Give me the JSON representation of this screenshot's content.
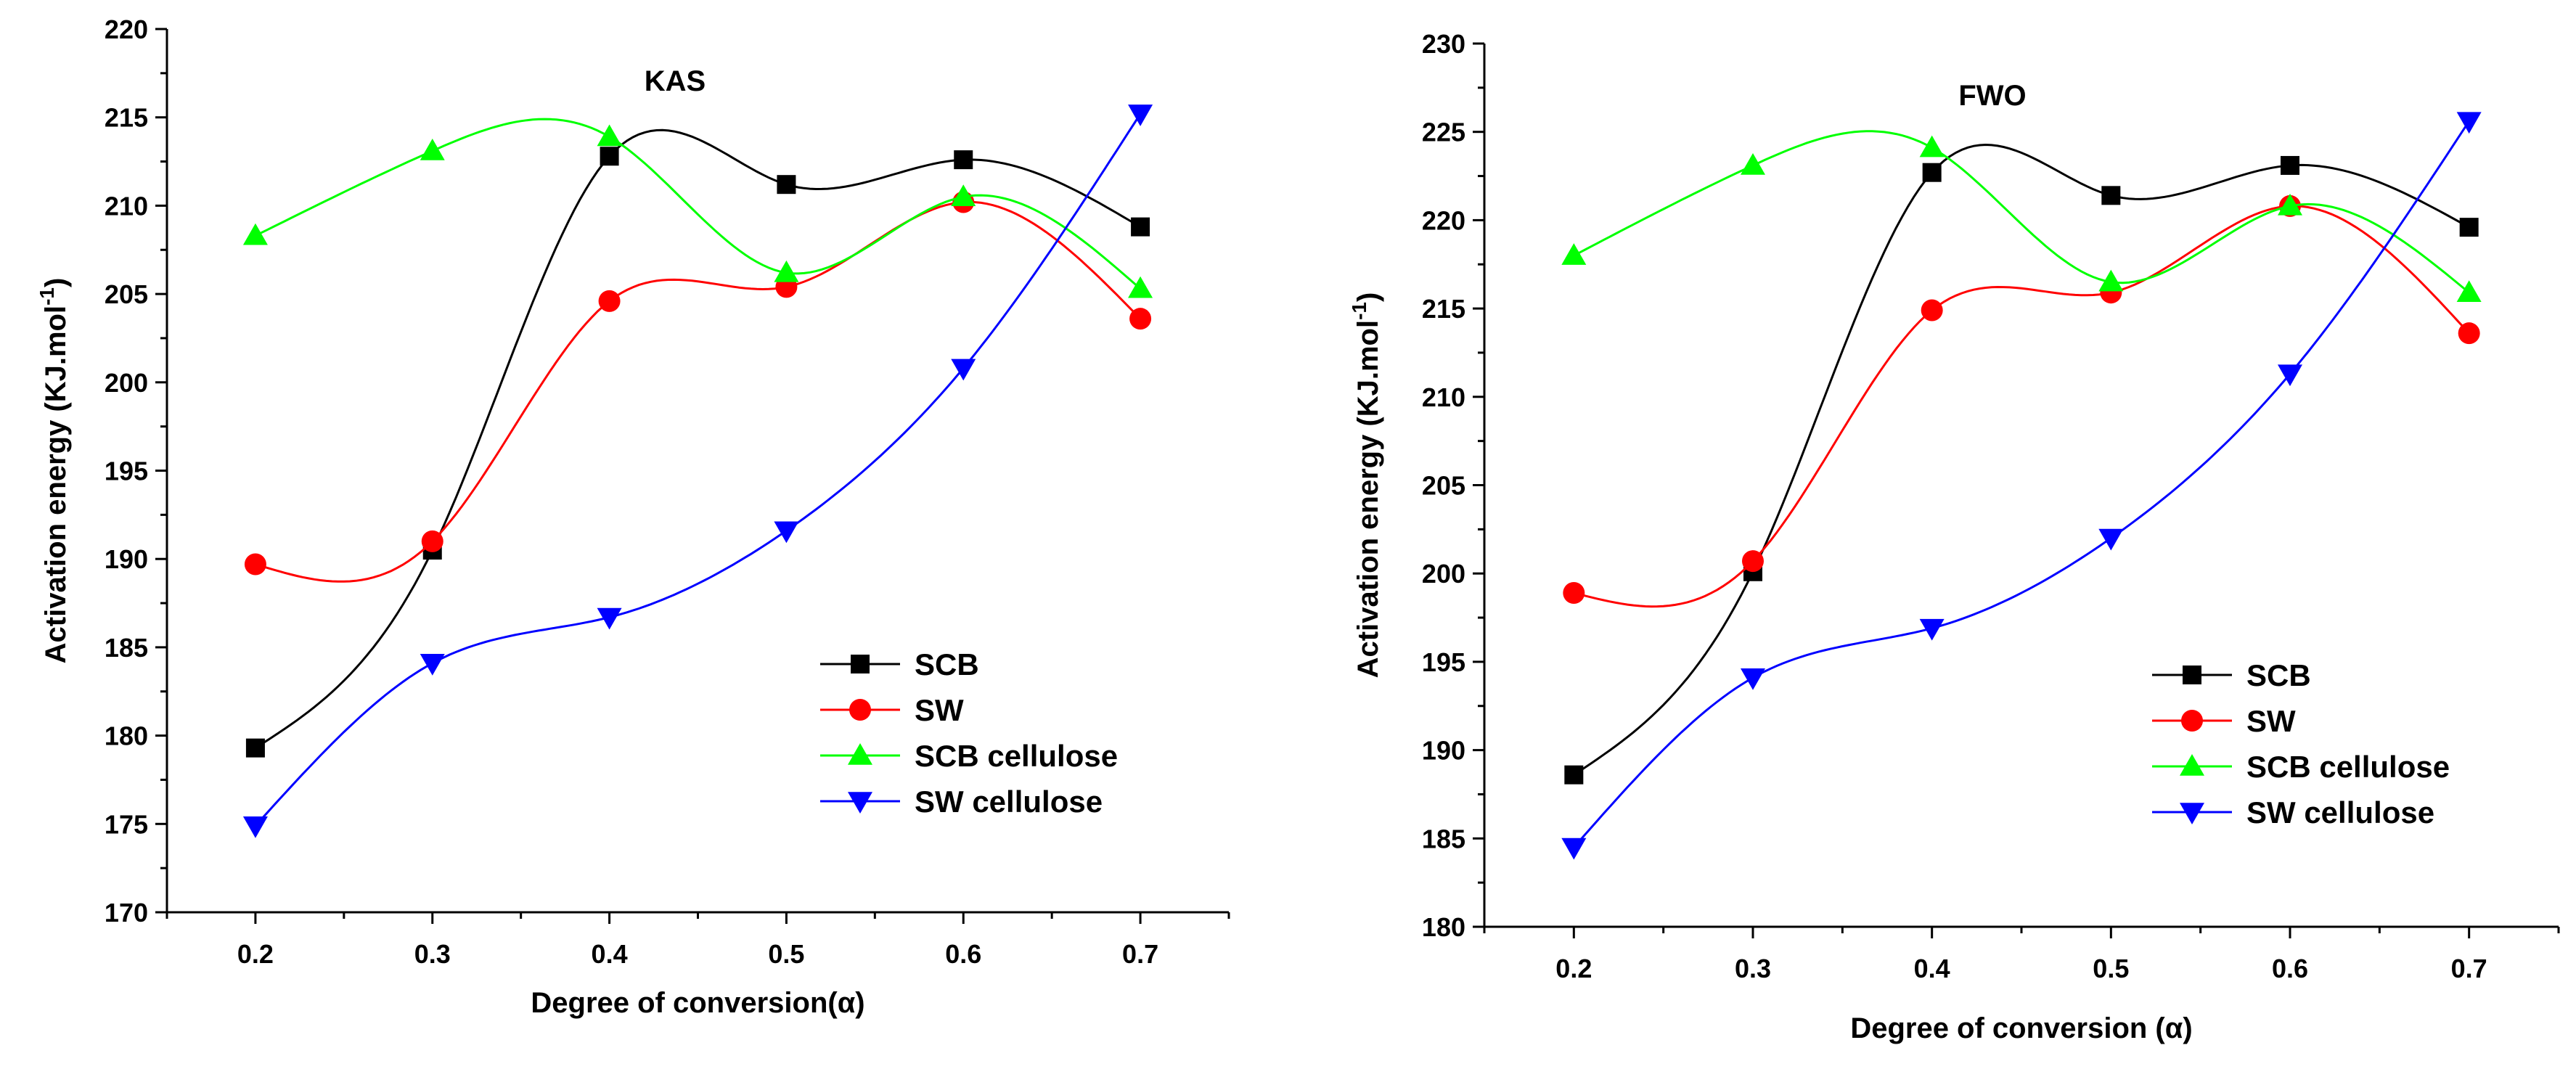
{
  "chart_data": [
    {
      "type": "line",
      "title": "KAS",
      "xlabel": "Degree of conversion(α)",
      "ylabel": "Activation energy (KJ.mol",
      "ylabel_sup": "-1",
      "ylabel_close": ")",
      "x": [
        0.2,
        0.3,
        0.4,
        0.5,
        0.6,
        0.7
      ],
      "x_ticks": [
        "0.2",
        "0.3",
        "0.4",
        "0.5",
        "0.6",
        "0.7"
      ],
      "xlim": [
        0.15,
        0.75
      ],
      "ylim": [
        170,
        220
      ],
      "y_ticks": [
        170,
        175,
        180,
        185,
        190,
        195,
        200,
        205,
        210,
        215,
        220
      ],
      "legend_position": "bottom-right",
      "series": [
        {
          "name": "SCB",
          "color": "#000000",
          "marker": "square",
          "values": [
            179.3,
            190.5,
            212.8,
            211.2,
            212.6,
            208.8
          ]
        },
        {
          "name": "SW",
          "color": "#ff0000",
          "marker": "circle",
          "values": [
            189.7,
            191.0,
            204.6,
            205.4,
            210.2,
            203.6
          ]
        },
        {
          "name": "SCB cellulose",
          "color": "#00ff00",
          "marker": "triangle-up",
          "values": [
            208.3,
            213.1,
            213.9,
            206.2,
            210.5,
            205.3
          ]
        },
        {
          "name": "SW cellulose",
          "color": "#0000ff",
          "marker": "triangle-down",
          "values": [
            174.9,
            184.1,
            186.7,
            191.6,
            200.8,
            215.2
          ]
        }
      ]
    },
    {
      "type": "line",
      "title": "FWO",
      "xlabel": "Degree of conversion (α)",
      "ylabel": "Activation energy (KJ.mol",
      "ylabel_sup": "-1",
      "ylabel_close": ")",
      "x": [
        0.2,
        0.3,
        0.4,
        0.5,
        0.6,
        0.7
      ],
      "x_ticks": [
        "0.2",
        "0.3",
        "0.4",
        "0.5",
        "0.6",
        "0.7"
      ],
      "xlim": [
        0.15,
        0.75
      ],
      "ylim": [
        180,
        230
      ],
      "y_ticks": [
        180,
        185,
        190,
        195,
        200,
        205,
        210,
        215,
        220,
        225,
        230
      ],
      "legend_position": "bottom-right",
      "series": [
        {
          "name": "SCB",
          "color": "#000000",
          "marker": "square",
          "values": [
            188.6,
            200.1,
            222.7,
            221.4,
            223.1,
            219.6
          ]
        },
        {
          "name": "SW",
          "color": "#ff0000",
          "marker": "circle",
          "values": [
            198.9,
            200.7,
            214.9,
            215.9,
            220.8,
            213.6
          ]
        },
        {
          "name": "SCB cellulose",
          "color": "#00ff00",
          "marker": "triangle-up",
          "values": [
            218.0,
            223.1,
            224.1,
            216.5,
            220.8,
            215.9
          ]
        },
        {
          "name": "SW cellulose",
          "color": "#0000ff",
          "marker": "triangle-down",
          "values": [
            184.5,
            194.1,
            196.9,
            202.0,
            211.3,
            225.6
          ]
        }
      ]
    }
  ]
}
